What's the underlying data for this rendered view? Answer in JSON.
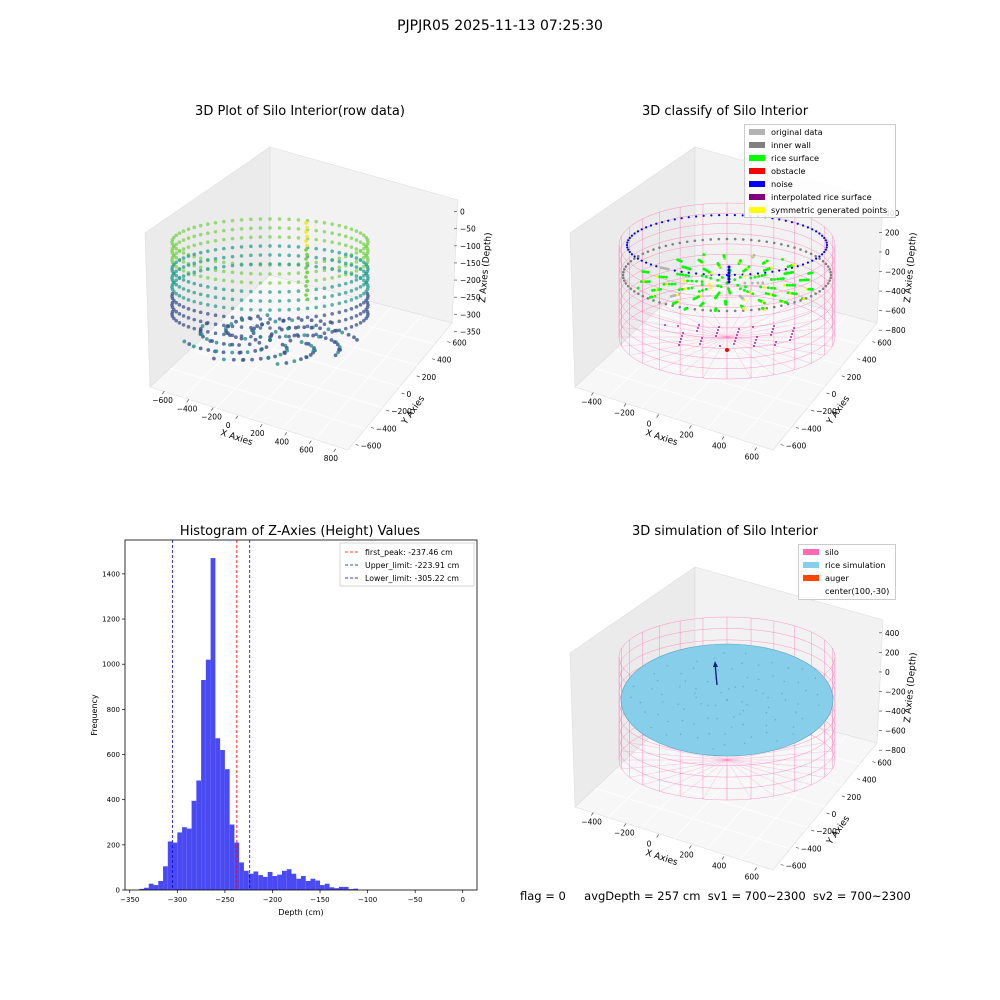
{
  "suptitle": "PJPJR05 2025-11-13 07:25:30",
  "panels": {
    "raw": {
      "title": "3D Plot of Silo Interior(row data)",
      "xlabel": "X Axies",
      "ylabel": "Y Axies",
      "zlabel": "Z Axies (Depth)",
      "xticks": [
        "−600",
        "−400",
        "−200",
        "0",
        "200",
        "400",
        "600",
        "800"
      ],
      "yticks": [
        "−600",
        "−400",
        "−200",
        "0",
        "200",
        "400",
        "600"
      ],
      "zticks": [
        "0",
        "−50",
        "−100",
        "−150",
        "−200",
        "−250",
        "−300",
        "−350"
      ]
    },
    "classify": {
      "title": "3D classify of Silo Interior",
      "xlabel": "X Axies",
      "ylabel": "Y Axies",
      "zlabel": "Z Axies (Depth)",
      "xticks": [
        "−400",
        "−200",
        "0",
        "200",
        "400",
        "600"
      ],
      "yticks": [
        "−600",
        "−400",
        "−200",
        "0",
        "200",
        "400",
        "600"
      ],
      "zticks": [
        "400",
        "200",
        "0",
        "−200",
        "−400",
        "−600",
        "−800"
      ],
      "legend": [
        {
          "label": "original data",
          "color": "#b3b3b3"
        },
        {
          "label": "inner wall",
          "color": "#808080"
        },
        {
          "label": "rice surface",
          "color": "#00ff00"
        },
        {
          "label": "obstacle",
          "color": "#ff0000"
        },
        {
          "label": "noise",
          "color": "#0000ff"
        },
        {
          "label": "interpolated rice surface",
          "color": "#800080"
        },
        {
          "label": "symmetric generated points",
          "color": "#ffff00"
        }
      ]
    },
    "simulation": {
      "title": "3D simulation of Silo Interior",
      "xlabel": "X Axies",
      "ylabel": "Y Axies",
      "zlabel": "Z Axies (Depth)",
      "xticks": [
        "−400",
        "−200",
        "0",
        "200",
        "400",
        "600"
      ],
      "yticks": [
        "−600",
        "−400",
        "−200",
        "0",
        "200",
        "400",
        "600"
      ],
      "zticks": [
        "400",
        "200",
        "0",
        "−200",
        "−400",
        "−600",
        "−800"
      ],
      "legend": [
        {
          "label": "silo",
          "color": "#ff69b4"
        },
        {
          "label": "rice simulation",
          "color": "#87ceeb"
        },
        {
          "label": "auger",
          "color": "#ff4500"
        },
        {
          "label": "center(100,-30)",
          "color": "none"
        }
      ]
    }
  },
  "chart_data": {
    "type": "bar",
    "title": "Histogram of Z-Axies (Height) Values",
    "xlabel": "Depth (cm)",
    "ylabel": "Frequency",
    "xlim": [
      -355,
      15
    ],
    "ylim": [
      0,
      1550
    ],
    "xticks": [
      -350,
      -300,
      -250,
      -200,
      -150,
      -100,
      -50,
      0
    ],
    "yticks": [
      0,
      200,
      400,
      600,
      800,
      1000,
      1200,
      1400
    ],
    "bar_color": "#4a4af5",
    "bin_width": 5,
    "bin_start": -340,
    "values": [
      5,
      10,
      28,
      22,
      40,
      105,
      215,
      210,
      255,
      278,
      272,
      395,
      485,
      930,
      1020,
      1470,
      672,
      620,
      535,
      290,
      210,
      122,
      85,
      72,
      82,
      66,
      58,
      80,
      62,
      68,
      85,
      92,
      72,
      50,
      62,
      40,
      50,
      42,
      22,
      28,
      12,
      8,
      14,
      14,
      4,
      6
    ],
    "vlines": [
      {
        "label": "first_peak: -237.46 cm",
        "value": -237.46,
        "color": "#ff0000"
      },
      {
        "label": "Upper_limit: -223.91 cm",
        "value": -223.91,
        "color": "#0000cc"
      },
      {
        "label": "Lower_limit: -305.22 cm",
        "value": -305.22,
        "color": "#0000cc"
      }
    ]
  },
  "footer": {
    "flag": "flag = 0",
    "avg_depth": "avgDepth = 257 cm",
    "sv1": "sv1 = 700~2300",
    "sv2": "sv2 = 700~2300"
  }
}
